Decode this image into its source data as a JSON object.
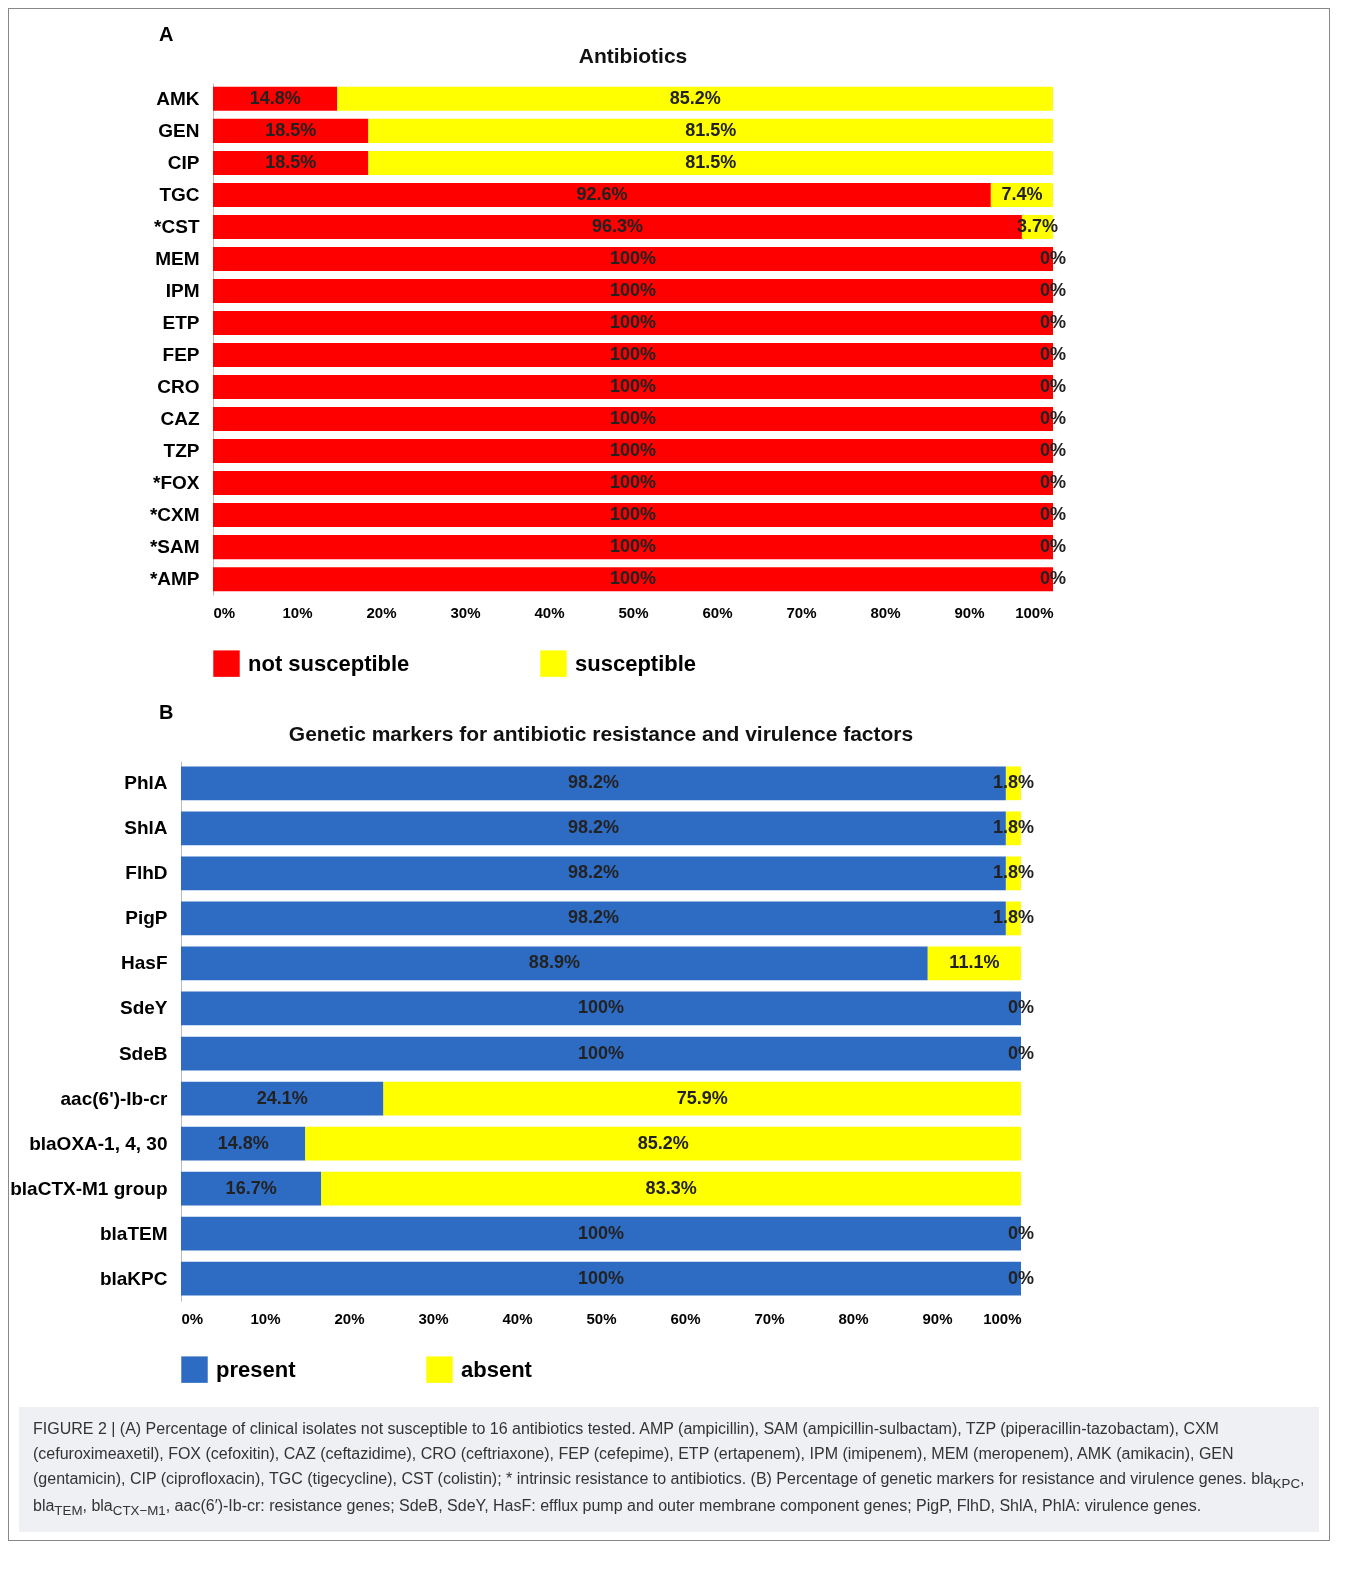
{
  "chart_data": [
    {
      "type": "bar",
      "title": "Antibiotics",
      "orientation": "horizontal",
      "stacked": true,
      "legend": "bottom",
      "annotations": [
        "A"
      ],
      "categories": [
        "AMK",
        "GEN",
        "CIP",
        "TGC",
        "*CST",
        "MEM",
        "IPM",
        "ETP",
        "FEP",
        "CRO",
        "CAZ",
        "TZP",
        "*FOX",
        "*CXM",
        "*SAM",
        "*AMP"
      ],
      "xlim": [
        0,
        100
      ],
      "xticks": [
        {
          "value": 0,
          "label": "0%"
        },
        {
          "value": 10,
          "label": "10%"
        },
        {
          "value": 20,
          "label": "20%"
        },
        {
          "value": 30,
          "label": "30%"
        },
        {
          "value": 40,
          "label": "40%"
        },
        {
          "value": 50,
          "label": "50%"
        },
        {
          "value": 60,
          "label": "60%"
        },
        {
          "value": 70,
          "label": "70%"
        },
        {
          "value": 80,
          "label": "80%"
        },
        {
          "value": 90,
          "label": "90%"
        },
        {
          "value": 100,
          "label": "100%"
        }
      ],
      "series": [
        {
          "name": "not susceptible",
          "color": "#ff0000",
          "values": [
            14.8,
            18.5,
            18.5,
            92.6,
            96.3,
            100,
            100,
            100,
            100,
            100,
            100,
            100,
            100,
            100,
            100,
            100
          ],
          "value_labels": [
            "14.8%",
            "18.5%",
            "18.5%",
            "92.6%",
            "96.3%",
            "100%",
            "100%",
            "100%",
            "100%",
            "100%",
            "100%",
            "100%",
            "100%",
            "100%",
            "100%",
            "100%"
          ]
        },
        {
          "name": "susceptible",
          "color": "#ffff00",
          "values": [
            85.2,
            81.5,
            81.5,
            7.4,
            3.7,
            0,
            0,
            0,
            0,
            0,
            0,
            0,
            0,
            0,
            0,
            0
          ],
          "value_labels": [
            "85.2%",
            "81.5%",
            "81.5%",
            "7.4%",
            "3.7%",
            "0%",
            "0%",
            "0%",
            "0%",
            "0%",
            "0%",
            "0%",
            "0%",
            "0%",
            "0%",
            "0%"
          ]
        }
      ]
    },
    {
      "type": "bar",
      "title": "Genetic markers for antibiotic resistance and virulence factors",
      "orientation": "horizontal",
      "stacked": true,
      "legend": "bottom",
      "annotations": [
        "B",
        "FIGURE 2 | (A) Percentage of clinical isolates not susceptible to 16 antibiotics tested. AMP (ampicillin), SAM (ampicillin-sulbactam), TZP (piperacillin-tazobactam), CXM (cefuroximeaxetil), FOX (cefoxitin), CAZ (ceftazidime), CRO (ceftriaxone), FEP (cefepime), ETP (ertapenem), IPM (imipenem), MEM (meropenem), AMK (amikacin), GEN (gentamicin), CIP (ciprofloxacin), TGC (tigecycline), CST (colistin); * intrinsic resistance to antibiotics. (B) Percentage of genetic markers for resistance and virulence genes. bla$_{KPC}$, bla$_{TEM}$, bla$_{CTX−M1}$, aac(6′)-Ib-cr: resistance genes; SdeB, SdeY, HasF: efflux pump and outer membrane component genes; PigP, FlhD, ShlA, PhlA: virulence genes."
      ],
      "categories": [
        "PhlA",
        "ShlA",
        "FlhD",
        "PigP",
        "HasF",
        "SdeY",
        "SdeB",
        "aac(6')-Ib-cr",
        "blaOXA-1, 4, 30",
        "blaCTX-M1 group",
        "blaTEM",
        "blaKPC"
      ],
      "xlim": [
        0,
        100
      ],
      "xticks": [
        {
          "value": 0,
          "label": "0%"
        },
        {
          "value": 10,
          "label": "10%"
        },
        {
          "value": 20,
          "label": "20%"
        },
        {
          "value": 30,
          "label": "30%"
        },
        {
          "value": 40,
          "label": "40%"
        },
        {
          "value": 50,
          "label": "50%"
        },
        {
          "value": 60,
          "label": "60%"
        },
        {
          "value": 70,
          "label": "70%"
        },
        {
          "value": 80,
          "label": "80%"
        },
        {
          "value": 90,
          "label": "90%"
        },
        {
          "value": 100,
          "label": "100%"
        }
      ],
      "series": [
        {
          "name": "present",
          "color": "#2e6cc4",
          "values": [
            98.2,
            98.2,
            98.2,
            98.2,
            88.9,
            100,
            100,
            24.1,
            14.8,
            16.7,
            100,
            100
          ],
          "value_labels": [
            "98.2%",
            "98.2%",
            "98.2%",
            "98.2%",
            "88.9%",
            "100%",
            "100%",
            "24.1%",
            "14.8%",
            "16.7%",
            "100%",
            "100%"
          ]
        },
        {
          "name": "absent",
          "color": "#ffff00",
          "values": [
            1.8,
            1.8,
            1.8,
            1.8,
            11.1,
            0,
            0,
            75.9,
            85.2,
            83.3,
            0,
            0
          ],
          "value_labels": [
            "1.8%",
            "1.8%",
            "1.8%",
            "1.8%",
            "11.1%",
            "0%",
            "0%",
            "75.9%",
            "85.2%",
            "83.3%",
            "0%",
            "0%"
          ]
        }
      ]
    }
  ]
}
